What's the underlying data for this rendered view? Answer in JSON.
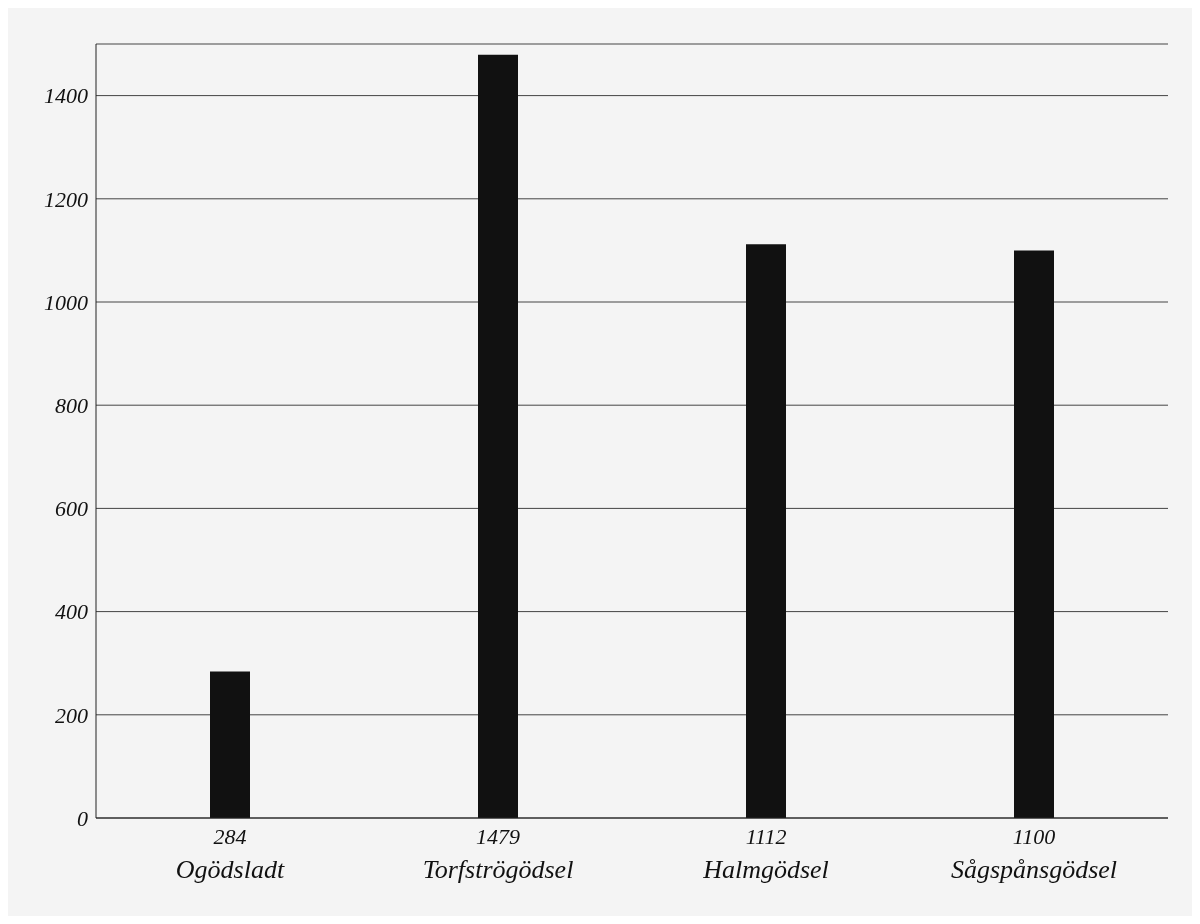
{
  "chart_data": {
    "type": "bar",
    "categories": [
      "Ogödsladt",
      "Torfströgödsel",
      "Halmgödsel",
      "Sågspånsgödsel"
    ],
    "values": [
      284,
      1479,
      1112,
      1100
    ],
    "color": "#111111",
    "ylim": [
      0,
      1500
    ],
    "yticks": [
      0,
      200,
      400,
      600,
      800,
      1000,
      1200,
      1400
    ],
    "grid": "y",
    "data_labels": true
  }
}
